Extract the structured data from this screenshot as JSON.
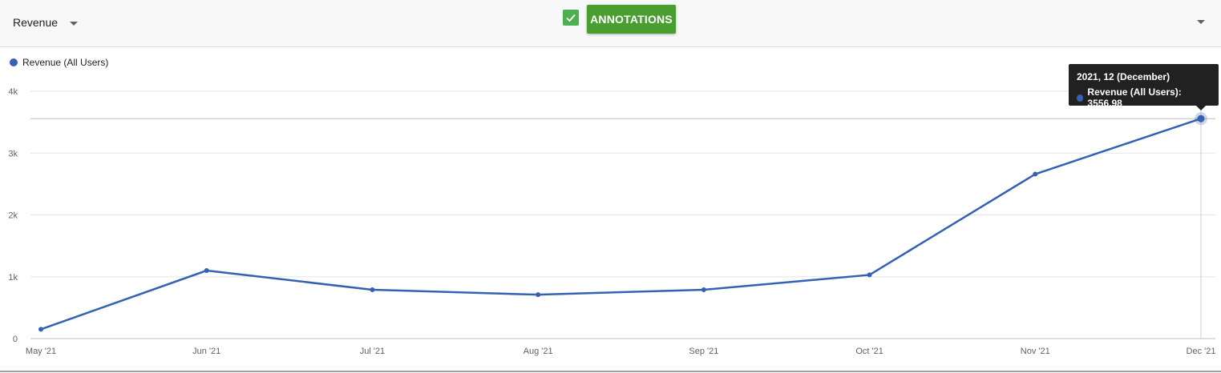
{
  "toolbar": {
    "metric_label": "Revenue",
    "annotations_label": "ANNOTATIONS",
    "annotations_checked": true
  },
  "colors": {
    "series": "#3561b3",
    "accent": "#4a9e2f"
  },
  "tooltip": {
    "title": "2021, 12 (December)",
    "series_label": "Revenue (All Users): 3556.98"
  },
  "chart_data": {
    "type": "line",
    "title": "",
    "xlabel": "",
    "ylabel": "",
    "categories": [
      "May '21",
      "Jun '21",
      "Jul '21",
      "Aug '21",
      "Sep '21",
      "Oct '21",
      "Nov '21",
      "Dec '21"
    ],
    "series": [
      {
        "name": "Revenue (All Users)",
        "values": [
          150,
          1100,
          790,
          710,
          790,
          1030,
          2660,
          3556.98
        ]
      }
    ],
    "ylim": [
      0,
      4000
    ],
    "yticks": [
      0,
      1000,
      2000,
      3000,
      4000
    ],
    "ytick_labels": [
      "0",
      "1k",
      "2k",
      "3k",
      "4k"
    ],
    "grid": true,
    "legend": "top-left",
    "highlighted_index": 7
  }
}
